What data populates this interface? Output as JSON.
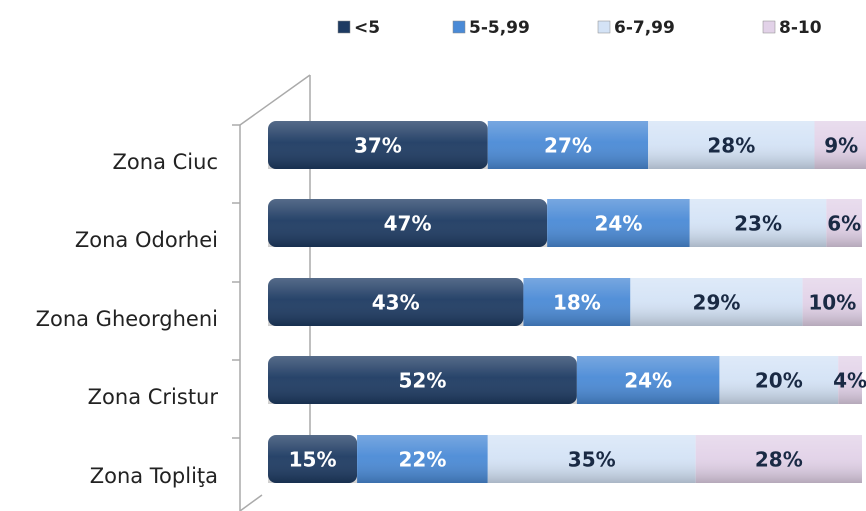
{
  "chart_data": {
    "type": "stacked-bar-horizontal",
    "categories": [
      "Zona Ciuc",
      "Zona Odorhei",
      "Zona Gheorgheni",
      "Zona Cristur",
      "Zona Topliţa"
    ],
    "series": [
      {
        "name": "<5",
        "color": "#1d3a62",
        "values": [
          37,
          47,
          43,
          52,
          15
        ],
        "value_labels": [
          "37%",
          "47%",
          "43%",
          "52%",
          "15%"
        ]
      },
      {
        "name": "5-5,99",
        "color": "#4a8ad6",
        "values": [
          27,
          24,
          18,
          24,
          22
        ],
        "value_labels": [
          "27%",
          "24%",
          "18%",
          "24%",
          "22%"
        ]
      },
      {
        "name": "6-7,99",
        "color": "#d4e3f6",
        "values": [
          28,
          23,
          29,
          20,
          35
        ],
        "value_labels": [
          "28%",
          "23%",
          "29%",
          "20%",
          "35%"
        ]
      },
      {
        "name": "8-10",
        "color": "#e2d2e8",
        "values": [
          9,
          6,
          10,
          4,
          28
        ],
        "value_labels": [
          "9%",
          "6%",
          "10%",
          "4%",
          "28%"
        ]
      }
    ],
    "legend": "top"
  }
}
